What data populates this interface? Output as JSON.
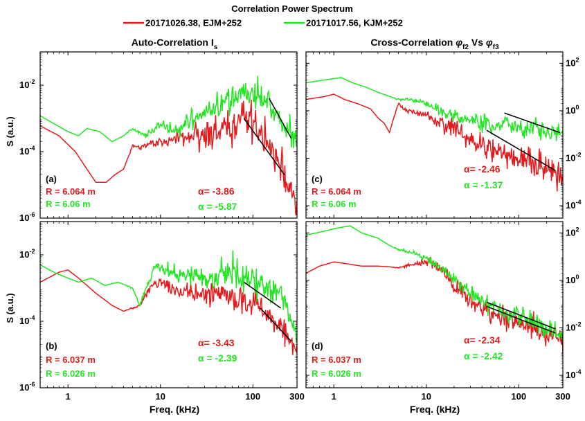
{
  "figure": {
    "title": "Correlation Power Spectrum",
    "legend": [
      {
        "label": "20171026.38, EJM+252",
        "color": "#e41a1c"
      },
      {
        "label": "20171017.56, KJM+252",
        "color": "#22e622"
      }
    ],
    "col_titles": {
      "left": {
        "main": "Auto-Correlation I",
        "sub": "s"
      },
      "right": {
        "pre": "Cross-Correlation ",
        "phi": "φ",
        "sub1": "f2",
        "mid": " Vs ",
        "sub2": "f3"
      }
    },
    "xlabel": "Freq. (kHz)",
    "ylabel": "S (a.u.)"
  },
  "chart_data": [
    {
      "id": "a",
      "type": "line",
      "xscale": "log",
      "yscale": "log",
      "xlim": [
        0.5,
        300
      ],
      "ylim": [
        1e-06,
        0.1
      ],
      "xticks": [
        1,
        10,
        100,
        300
      ],
      "xtick_labels": [
        "1",
        "10",
        "100",
        "300"
      ],
      "yticks": [
        1e-06,
        0.0001,
        0.01
      ],
      "ytick_labels": [
        {
          "b": "10",
          "e": "-6"
        },
        {
          "b": "10",
          "e": "-4"
        },
        {
          "b": "10",
          "e": "-2"
        }
      ],
      "yaxis_side": "left",
      "panel_label": "(a)",
      "r_labels": [
        "R = 6.064 m",
        "R = 6.06 m"
      ],
      "alpha_labels": [
        "α= -3.86",
        "α = -5.87"
      ],
      "series": [
        {
          "color": "#e41a1c",
          "noise": 0.28,
          "points": [
            [
              0.5,
              0.0006
            ],
            [
              0.8,
              0.0003
            ],
            [
              1.2,
              0.0001
            ],
            [
              1.6,
              3e-05
            ],
            [
              2.0,
              1.2e-05
            ],
            [
              2.6,
              1.2e-05
            ],
            [
              3.2,
              2e-05
            ],
            [
              4,
              3e-05
            ],
            [
              5,
              0.00015
            ],
            [
              6,
              0.00012
            ],
            [
              8,
              0.0002
            ],
            [
              10,
              0.00018
            ],
            [
              14,
              0.00025
            ],
            [
              20,
              0.0003
            ],
            [
              30,
              0.00035
            ],
            [
              45,
              0.0004
            ],
            [
              60,
              0.0005
            ],
            [
              80,
              0.0012
            ],
            [
              100,
              0.0008
            ],
            [
              140,
              0.0002
            ],
            [
              200,
              3e-05
            ],
            [
              250,
              8e-06
            ],
            [
              300,
              2e-06
            ]
          ]
        },
        {
          "color": "#22e622",
          "noise": 0.22,
          "points": [
            [
              0.5,
              0.0012
            ],
            [
              0.7,
              0.0007
            ],
            [
              1.0,
              0.0004
            ],
            [
              1.3,
              0.0003
            ],
            [
              1.6,
              0.0005
            ],
            [
              2.2,
              0.0004
            ],
            [
              3,
              0.0002
            ],
            [
              4,
              0.0003
            ],
            [
              5,
              0.0005
            ],
            [
              7,
              0.0003
            ],
            [
              10,
              0.0007
            ],
            [
              15,
              0.0004
            ],
            [
              20,
              0.0008
            ],
            [
              30,
              0.0015
            ],
            [
              45,
              0.003
            ],
            [
              60,
              0.005
            ],
            [
              80,
              0.006
            ],
            [
              100,
              0.005
            ],
            [
              150,
              0.003
            ],
            [
              200,
              0.001
            ],
            [
              250,
              0.0004
            ],
            [
              300,
              0.00015
            ]
          ]
        }
      ],
      "fit_lines": [
        {
          "x": [
            80,
            220
          ],
          "y": [
            0.001,
            2e-05
          ]
        },
        {
          "x": [
            150,
            260
          ],
          "y": [
            0.004,
            0.00025
          ]
        }
      ]
    },
    {
      "id": "b",
      "type": "line",
      "xscale": "log",
      "yscale": "log",
      "xlim": [
        0.5,
        300
      ],
      "ylim": [
        1e-06,
        0.1
      ],
      "xticks": [
        1,
        10,
        100,
        300
      ],
      "xtick_labels": [
        "1",
        "10",
        "100",
        "300"
      ],
      "yticks": [
        1e-06,
        0.0001,
        0.01
      ],
      "ytick_labels": [
        {
          "b": "10",
          "e": "-6"
        },
        {
          "b": "10",
          "e": "-4"
        },
        {
          "b": "10",
          "e": "-2"
        }
      ],
      "yaxis_side": "left",
      "panel_label": "(b)",
      "r_labels": [
        "R = 6.037 m",
        "R = 6.026 m"
      ],
      "alpha_labels": [
        "α= -3.43",
        "α = -2.39"
      ],
      "series": [
        {
          "color": "#e41a1c",
          "noise": 0.2,
          "points": [
            [
              0.5,
              0.0015
            ],
            [
              0.8,
              0.003
            ],
            [
              1.0,
              0.0035
            ],
            [
              1.3,
              0.002
            ],
            [
              2.0,
              0.0007
            ],
            [
              3,
              0.0003
            ],
            [
              4,
              0.0002
            ],
            [
              5,
              0.00025
            ],
            [
              6,
              0.0003
            ],
            [
              8,
              0.0012
            ],
            [
              10,
              0.0015
            ],
            [
              14,
              0.0009
            ],
            [
              20,
              0.0008
            ],
            [
              30,
              0.0006
            ],
            [
              45,
              0.0007
            ],
            [
              60,
              0.0006
            ],
            [
              80,
              0.0004
            ],
            [
              100,
              0.0004
            ],
            [
              140,
              0.0002
            ],
            [
              200,
              7e-05
            ],
            [
              250,
              3e-05
            ],
            [
              300,
              1.5e-05
            ]
          ]
        },
        {
          "color": "#22e622",
          "noise": 0.22,
          "points": [
            [
              0.5,
              0.005
            ],
            [
              0.7,
              0.003
            ],
            [
              1.0,
              0.002
            ],
            [
              1.3,
              0.0015
            ],
            [
              1.8,
              0.002
            ],
            [
              2.5,
              0.0012
            ],
            [
              3.5,
              0.0015
            ],
            [
              5,
              0.001
            ],
            [
              6,
              0.0003
            ],
            [
              7,
              0.001
            ],
            [
              9,
              0.005
            ],
            [
              12,
              0.003
            ],
            [
              16,
              0.002
            ],
            [
              22,
              0.0025
            ],
            [
              30,
              0.0015
            ],
            [
              45,
              0.0025
            ],
            [
              60,
              0.003
            ],
            [
              80,
              0.002
            ],
            [
              100,
              0.0015
            ],
            [
              150,
              0.001
            ],
            [
              200,
              0.0005
            ],
            [
              250,
              0.00015
            ],
            [
              300,
              4e-05
            ]
          ]
        }
      ],
      "fit_lines": [
        {
          "x": [
            80,
            200
          ],
          "y": [
            0.0015,
            0.00025
          ]
        },
        {
          "x": [
            120,
            260
          ],
          "y": [
            0.00025,
            2.5e-05
          ]
        }
      ]
    },
    {
      "id": "c",
      "type": "line",
      "xscale": "log",
      "yscale": "log",
      "xlim": [
        0.5,
        300
      ],
      "ylim": [
        3e-05,
        300.0
      ],
      "xticks": [
        1,
        10,
        100,
        300
      ],
      "xtick_labels": [
        "1",
        "10",
        "100",
        "300"
      ],
      "yticks": [
        0.0001,
        0.01,
        1,
        100.0
      ],
      "ytick_labels": [
        {
          "b": "10",
          "e": "-4"
        },
        {
          "b": "10",
          "e": "-2"
        },
        {
          "b": "10",
          "e": "0"
        },
        {
          "b": "10",
          "e": "2"
        }
      ],
      "yaxis_side": "right",
      "panel_label": "(c)",
      "r_labels": [
        "R = 6.064 m",
        "R = 6.06 m"
      ],
      "alpha_labels": [
        "α= -2.46",
        "α = -1.37"
      ],
      "series": [
        {
          "color": "#e41a1c",
          "noise": 0.3,
          "points": [
            [
              0.5,
              3
            ],
            [
              0.8,
              4
            ],
            [
              1.0,
              5
            ],
            [
              1.3,
              3
            ],
            [
              1.8,
              2
            ],
            [
              2.5,
              1.2
            ],
            [
              3,
              0.5
            ],
            [
              3.5,
              0.3
            ],
            [
              4,
              0.12
            ],
            [
              4.5,
              0.6
            ],
            [
              5,
              2
            ],
            [
              6,
              1
            ],
            [
              8,
              0.8
            ],
            [
              10,
              0.6
            ],
            [
              14,
              0.3
            ],
            [
              20,
              0.15
            ],
            [
              30,
              0.06
            ],
            [
              45,
              0.03
            ],
            [
              60,
              0.02
            ],
            [
              80,
              0.015
            ],
            [
              100,
              0.01
            ],
            [
              150,
              0.006
            ],
            [
              200,
              0.004
            ],
            [
              300,
              0.002
            ]
          ]
        },
        {
          "color": "#22e622",
          "noise": 0.22,
          "points": [
            [
              0.5,
              15
            ],
            [
              0.8,
              20
            ],
            [
              1.2,
              25
            ],
            [
              1.6,
              15
            ],
            [
              2.2,
              10
            ],
            [
              3,
              6
            ],
            [
              4,
              4
            ],
            [
              5,
              3
            ],
            [
              7,
              3
            ],
            [
              10,
              2
            ],
            [
              14,
              1
            ],
            [
              20,
              0.6
            ],
            [
              30,
              0.4
            ],
            [
              45,
              0.3
            ],
            [
              60,
              0.25
            ],
            [
              80,
              0.22
            ],
            [
              100,
              0.2
            ],
            [
              150,
              0.18
            ],
            [
              200,
              0.15
            ],
            [
              300,
              0.12
            ]
          ]
        }
      ],
      "fit_lines": [
        {
          "x": [
            70,
            280
          ],
          "y": [
            0.8,
            0.12
          ]
        },
        {
          "x": [
            45,
            250
          ],
          "y": [
            0.15,
            0.003
          ]
        }
      ]
    },
    {
      "id": "d",
      "type": "line",
      "xscale": "log",
      "yscale": "log",
      "xlim": [
        0.5,
        300
      ],
      "ylim": [
        3e-05,
        300.0
      ],
      "xticks": [
        1,
        10,
        100,
        300
      ],
      "xtick_labels": [
        "1",
        "10",
        "100",
        "300"
      ],
      "yticks": [
        0.0001,
        0.01,
        1,
        100.0
      ],
      "ytick_labels": [
        {
          "b": "10",
          "e": "-4"
        },
        {
          "b": "10",
          "e": "-2"
        },
        {
          "b": "10",
          "e": "0"
        },
        {
          "b": "10",
          "e": "2"
        }
      ],
      "yaxis_side": "right",
      "panel_label": "(d)",
      "r_labels": [
        "R = 6.037 m",
        "R = 6.026 m"
      ],
      "alpha_labels": [
        "α= -2.34",
        "α = -2.42"
      ],
      "series": [
        {
          "color": "#e41a1c",
          "noise": 0.25,
          "points": [
            [
              0.5,
              2
            ],
            [
              0.7,
              4
            ],
            [
              1.0,
              6
            ],
            [
              1.4,
              5
            ],
            [
              2,
              4
            ],
            [
              3,
              4
            ],
            [
              5,
              3.5
            ],
            [
              8,
              5
            ],
            [
              10,
              6
            ],
            [
              12,
              5
            ],
            [
              14,
              3
            ],
            [
              18,
              1
            ],
            [
              22,
              0.4
            ],
            [
              30,
              0.15
            ],
            [
              45,
              0.05
            ],
            [
              60,
              0.03
            ],
            [
              80,
              0.02
            ],
            [
              100,
              0.015
            ],
            [
              150,
              0.01
            ],
            [
              200,
              0.006
            ],
            [
              300,
              0.003
            ]
          ]
        },
        {
          "color": "#22e622",
          "noise": 0.22,
          "points": [
            [
              0.5,
              80
            ],
            [
              0.8,
              120
            ],
            [
              1.0,
              150
            ],
            [
              1.5,
              200
            ],
            [
              2,
              100
            ],
            [
              3,
              60
            ],
            [
              4,
              30
            ],
            [
              5,
              20
            ],
            [
              7,
              15
            ],
            [
              9,
              10
            ],
            [
              12,
              6
            ],
            [
              15,
              3
            ],
            [
              20,
              1
            ],
            [
              30,
              0.3
            ],
            [
              45,
              0.1
            ],
            [
              60,
              0.06
            ],
            [
              80,
              0.04
            ],
            [
              100,
              0.03
            ],
            [
              150,
              0.015
            ],
            [
              200,
              0.008
            ],
            [
              300,
              0.004
            ]
          ]
        }
      ],
      "fit_lines": [
        {
          "x": [
            45,
            250
          ],
          "y": [
            0.08,
            0.006
          ]
        },
        {
          "x": [
            45,
            250
          ],
          "y": [
            0.12,
            0.009
          ]
        }
      ]
    }
  ]
}
